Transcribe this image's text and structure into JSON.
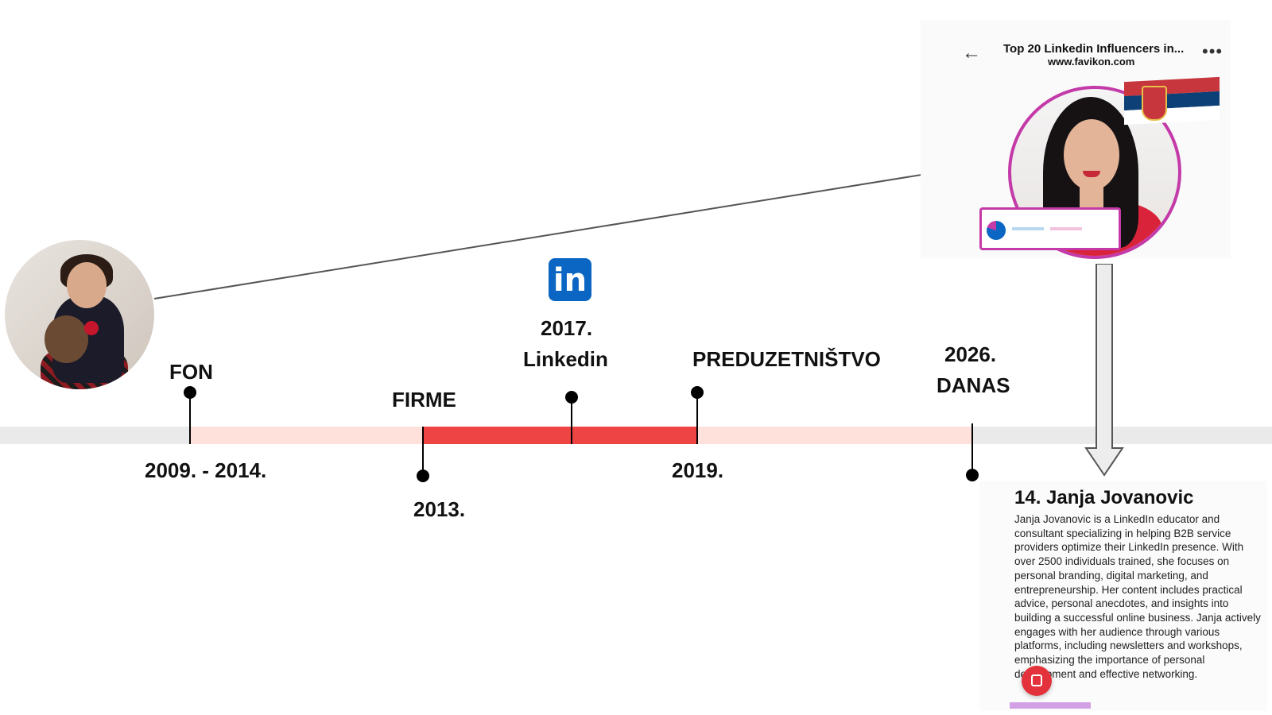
{
  "timeline": {
    "labels": {
      "fon": "FON",
      "firme": "FIRME",
      "year_2017": "2017.",
      "linkedin": "Linkedin",
      "preduzetnistvo": "PREDUZETNIŠTVO",
      "year_2026": "2026.",
      "danas": "DANAS",
      "range_2009_2014": "2009. - 2014.",
      "year_2013": "2013.",
      "year_2019": "2019."
    },
    "colors": {
      "track_grey": "#eaeaea",
      "track_pink": "#fde1da",
      "track_red": "#ef4444",
      "marker": "#000000"
    }
  },
  "icons": {
    "linkedin_logo": "linkedin-icon",
    "linkedin_logo_text": "in"
  },
  "profile_card": {
    "title": "Top 20 Linkedin Influencers in...",
    "subtitle": "www.favikon.com",
    "back": "←",
    "more": "•••",
    "accent": "#c33aa8"
  },
  "description": {
    "name": "14. Janja Jovanovic",
    "body": "Janja Jovanovic is a LinkedIn educator and consultant specializing in helping B2B service providers optimize their LinkedIn presence. With over 2500 individuals trained, she focuses on personal branding, digital marketing, and entrepreneurship. Her content includes practical advice, personal anecdotes, and insights into building a successful online business. Janja actively engages with her audience through various platforms, including newsletters and workshops, emphasizing the importance of personal development and effective networking."
  }
}
